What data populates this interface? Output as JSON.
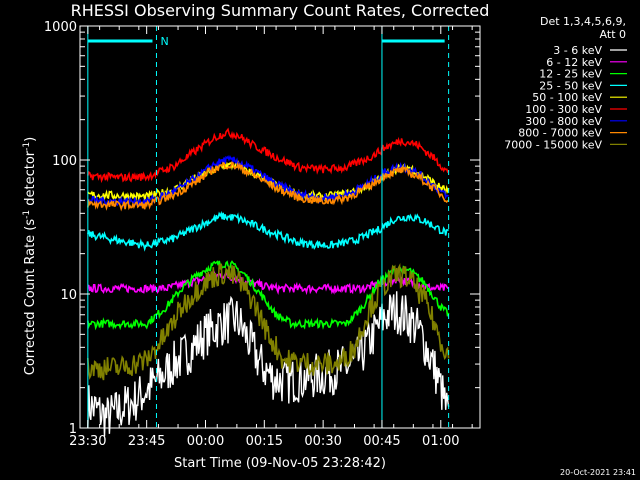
{
  "chart_data": {
    "type": "line",
    "title": "RHESSI Observing Summary Count Rates, Corrected",
    "xlabel": "Start Time (09-Nov-05 23:28:42)",
    "ylabel_main": "Corrected Count Rate (s",
    "ylabel_sup1": "-1",
    "ylabel_mid": " detector",
    "ylabel_sup2": "-1",
    "ylabel_end": ")",
    "y_scale": "log",
    "ylim": [
      1,
      1000
    ],
    "yticks": [
      {
        "value": 1,
        "label": "1"
      },
      {
        "value": 10,
        "label": "10"
      },
      {
        "value": 100,
        "label": "100"
      },
      {
        "value": 1000,
        "label": "1000"
      }
    ],
    "xlim_minutes": [
      -2,
      100
    ],
    "xticks": [
      {
        "t": 0,
        "label": "23:30"
      },
      {
        "t": 15,
        "label": "23:45"
      },
      {
        "t": 30,
        "label": "00:00"
      },
      {
        "t": 45,
        "label": "00:15"
      },
      {
        "t": 60,
        "label": "00:30"
      },
      {
        "t": 75,
        "label": "00:45"
      },
      {
        "t": 90,
        "label": "01:00"
      }
    ],
    "legend_header": [
      "Det 1,3,4,5,6,9,",
      "Att 0"
    ],
    "legend_position": "right",
    "night_marker_label": "N",
    "night_intervals": [
      [
        0,
        17.5
      ],
      [
        75,
        92
      ]
    ],
    "markers_solid": [
      0,
      75
    ],
    "markers_dashed": [
      17.5,
      92
    ],
    "series": [
      {
        "name": "3 - 6 keV",
        "color": "#ffffff",
        "points": [
          [
            0,
            1.5
          ],
          [
            5,
            1.2
          ],
          [
            12,
            1.6
          ],
          [
            18,
            2.3
          ],
          [
            22,
            3.0
          ],
          [
            26,
            3.8
          ],
          [
            30,
            5.0
          ],
          [
            34,
            6.0
          ],
          [
            38,
            6.5
          ],
          [
            41,
            4.5
          ],
          [
            44,
            3.0
          ],
          [
            47,
            2.4
          ],
          [
            50,
            2.2
          ],
          [
            60,
            2.5
          ],
          [
            68,
            3.0
          ],
          [
            72,
            4.5
          ],
          [
            76,
            7.0
          ],
          [
            79,
            7.5
          ],
          [
            82,
            6.5
          ],
          [
            85,
            5.0
          ],
          [
            88,
            3.0
          ],
          [
            90,
            2.0
          ],
          [
            92,
            1.2
          ]
        ]
      },
      {
        "name": "6 - 12 keV",
        "color": "#ff00ff",
        "points": [
          [
            0,
            11
          ],
          [
            15,
            11
          ],
          [
            20,
            11
          ],
          [
            25,
            12
          ],
          [
            30,
            13
          ],
          [
            34,
            14
          ],
          [
            38,
            13
          ],
          [
            42,
            12
          ],
          [
            48,
            11
          ],
          [
            60,
            11
          ],
          [
            70,
            11
          ],
          [
            75,
            12
          ],
          [
            79,
            13
          ],
          [
            83,
            12
          ],
          [
            88,
            11
          ],
          [
            92,
            11
          ]
        ]
      },
      {
        "name": "12 - 25 keV",
        "color": "#00ff00",
        "points": [
          [
            0,
            6.0
          ],
          [
            15,
            6.0
          ],
          [
            20,
            8
          ],
          [
            24,
            11
          ],
          [
            28,
            14
          ],
          [
            32,
            16.5
          ],
          [
            36,
            17
          ],
          [
            40,
            14
          ],
          [
            44,
            10
          ],
          [
            48,
            7
          ],
          [
            52,
            6
          ],
          [
            60,
            6
          ],
          [
            66,
            6
          ],
          [
            70,
            8
          ],
          [
            74,
            12
          ],
          [
            78,
            15
          ],
          [
            82,
            15
          ],
          [
            86,
            12
          ],
          [
            90,
            8
          ],
          [
            92,
            7
          ]
        ]
      },
      {
        "name": "25 - 50 keV",
        "color": "#00ffff",
        "points": [
          [
            0,
            28
          ],
          [
            8,
            25
          ],
          [
            15,
            23
          ],
          [
            22,
            26
          ],
          [
            28,
            32
          ],
          [
            34,
            38
          ],
          [
            38,
            37
          ],
          [
            42,
            33
          ],
          [
            48,
            28
          ],
          [
            54,
            24
          ],
          [
            62,
            23
          ],
          [
            68,
            25
          ],
          [
            74,
            30
          ],
          [
            78,
            36
          ],
          [
            82,
            38
          ],
          [
            86,
            35
          ],
          [
            90,
            30
          ],
          [
            92,
            28
          ]
        ]
      },
      {
        "name": "50 - 100 keV",
        "color": "#ffff00",
        "points": [
          [
            0,
            55
          ],
          [
            10,
            54
          ],
          [
            15,
            53
          ],
          [
            22,
            60
          ],
          [
            28,
            75
          ],
          [
            34,
            90
          ],
          [
            38,
            92
          ],
          [
            42,
            80
          ],
          [
            48,
            65
          ],
          [
            54,
            55
          ],
          [
            60,
            53
          ],
          [
            66,
            56
          ],
          [
            72,
            65
          ],
          [
            78,
            85
          ],
          [
            82,
            88
          ],
          [
            86,
            75
          ],
          [
            90,
            62
          ],
          [
            92,
            58
          ]
        ]
      },
      {
        "name": "100 - 300 keV",
        "color": "#ff0000",
        "points": [
          [
            0,
            76
          ],
          [
            8,
            74
          ],
          [
            15,
            75
          ],
          [
            22,
            90
          ],
          [
            28,
            120
          ],
          [
            32,
            145
          ],
          [
            35,
            160
          ],
          [
            38,
            155
          ],
          [
            42,
            130
          ],
          [
            48,
            105
          ],
          [
            54,
            88
          ],
          [
            60,
            85
          ],
          [
            66,
            88
          ],
          [
            72,
            105
          ],
          [
            76,
            125
          ],
          [
            80,
            140
          ],
          [
            84,
            130
          ],
          [
            88,
            105
          ],
          [
            92,
            80
          ]
        ]
      },
      {
        "name": "300 - 800 keV",
        "color": "#0000ff",
        "points": [
          [
            0,
            50
          ],
          [
            10,
            49
          ],
          [
            15,
            49
          ],
          [
            22,
            58
          ],
          [
            28,
            75
          ],
          [
            32,
            92
          ],
          [
            35,
            100
          ],
          [
            38,
            98
          ],
          [
            42,
            85
          ],
          [
            48,
            66
          ],
          [
            54,
            55
          ],
          [
            60,
            52
          ],
          [
            66,
            55
          ],
          [
            72,
            68
          ],
          [
            76,
            82
          ],
          [
            80,
            90
          ],
          [
            84,
            80
          ],
          [
            88,
            65
          ],
          [
            92,
            52
          ]
        ]
      },
      {
        "name": "800 - 7000 keV",
        "color": "#ff8800",
        "points": [
          [
            0,
            47
          ],
          [
            10,
            46
          ],
          [
            15,
            46
          ],
          [
            22,
            55
          ],
          [
            28,
            70
          ],
          [
            32,
            85
          ],
          [
            35,
            92
          ],
          [
            38,
            90
          ],
          [
            42,
            78
          ],
          [
            48,
            62
          ],
          [
            54,
            52
          ],
          [
            60,
            49
          ],
          [
            66,
            52
          ],
          [
            72,
            64
          ],
          [
            76,
            78
          ],
          [
            80,
            84
          ],
          [
            84,
            76
          ],
          [
            88,
            62
          ],
          [
            92,
            50
          ]
        ]
      },
      {
        "name": "7000 - 15000 keV",
        "color": "#808000",
        "points": [
          [
            0,
            2.8
          ],
          [
            8,
            2.8
          ],
          [
            15,
            3.2
          ],
          [
            20,
            5
          ],
          [
            24,
            8
          ],
          [
            28,
            11
          ],
          [
            32,
            13.5
          ],
          [
            35,
            14.5
          ],
          [
            38,
            13
          ],
          [
            42,
            9
          ],
          [
            46,
            5
          ],
          [
            50,
            3.2
          ],
          [
            58,
            3.0
          ],
          [
            64,
            3.0
          ],
          [
            68,
            4
          ],
          [
            72,
            8
          ],
          [
            76,
            12
          ],
          [
            79,
            14
          ],
          [
            82,
            13
          ],
          [
            86,
            9
          ],
          [
            90,
            4.5
          ],
          [
            92,
            3.5
          ]
        ]
      }
    ]
  },
  "footer": {
    "timestamp": "20-Oct-2021 23:41"
  }
}
